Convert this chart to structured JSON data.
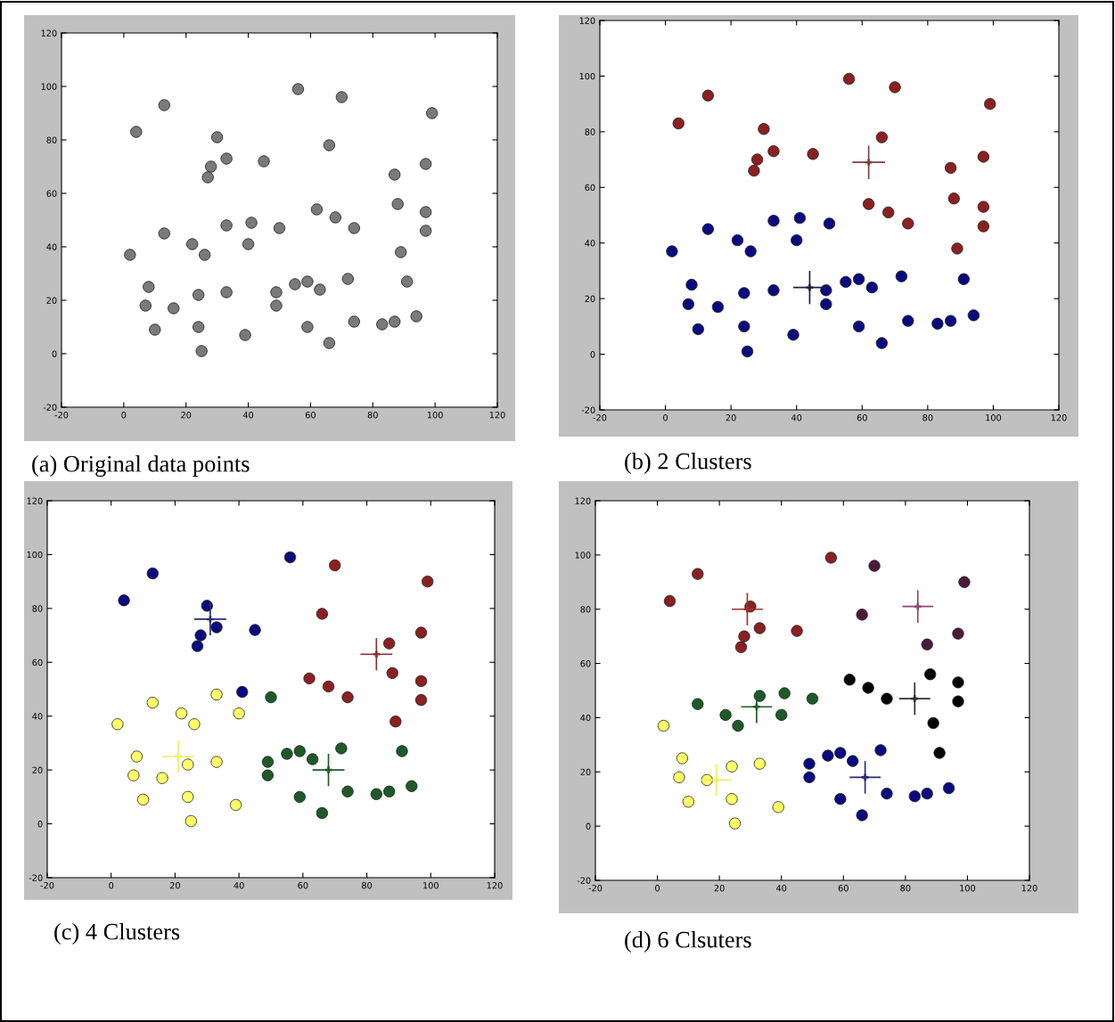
{
  "chart_data": [
    {
      "type": "scatter",
      "title": "(a) Original data points",
      "xlim": [
        -20,
        120
      ],
      "ylim": [
        -20,
        120
      ],
      "xticks": [
        -20,
        0,
        20,
        40,
        60,
        80,
        100,
        120
      ],
      "yticks": [
        -20,
        0,
        20,
        40,
        60,
        80,
        100,
        120
      ],
      "grid": false,
      "series": [
        {
          "color": "#7a7a7a",
          "marker": "circle",
          "x": [
            4,
            13,
            56,
            70,
            99,
            30,
            66,
            33,
            45,
            28,
            27,
            97,
            87,
            88,
            97,
            97,
            62,
            68,
            74,
            89,
            33,
            41,
            50,
            13,
            22,
            40,
            2,
            26,
            8,
            7,
            16,
            10,
            24,
            24,
            25,
            33,
            39,
            49,
            49,
            55,
            59,
            63,
            72,
            59,
            66,
            74,
            83,
            87,
            91,
            94
          ],
          "values": [
            83,
            93,
            99,
            96,
            90,
            81,
            78,
            73,
            72,
            70,
            66,
            71,
            67,
            56,
            53,
            46,
            54,
            51,
            47,
            38,
            48,
            49,
            47,
            45,
            41,
            41,
            37,
            37,
            25,
            18,
            17,
            9,
            22,
            10,
            1,
            23,
            7,
            23,
            18,
            26,
            27,
            24,
            28,
            10,
            4,
            12,
            11,
            12,
            27,
            14
          ]
        }
      ]
    },
    {
      "type": "scatter",
      "title": "(b) 2 Clusters",
      "xlim": [
        -20,
        120
      ],
      "ylim": [
        -20,
        120
      ],
      "xticks": [
        -20,
        0,
        20,
        40,
        60,
        80,
        100,
        120
      ],
      "yticks": [
        -20,
        0,
        20,
        40,
        60,
        80,
        100,
        120
      ],
      "grid": false,
      "series": [
        {
          "color": "#8b2020",
          "marker": "circle",
          "x": [
            4,
            13,
            56,
            70,
            99,
            30,
            66,
            33,
            45,
            28,
            27,
            97,
            87,
            88,
            97,
            97,
            62,
            68,
            74,
            89
          ],
          "values": [
            83,
            93,
            99,
            96,
            90,
            81,
            78,
            73,
            72,
            70,
            66,
            71,
            67,
            56,
            53,
            46,
            54,
            51,
            47,
            38
          ]
        },
        {
          "color": "#0a0a80",
          "marker": "circle",
          "x": [
            33,
            41,
            50,
            13,
            22,
            40,
            2,
            26,
            8,
            7,
            16,
            10,
            24,
            24,
            25,
            33,
            39,
            49,
            49,
            55,
            59,
            63,
            72,
            59,
            66,
            74,
            83,
            87,
            91,
            94
          ],
          "values": [
            48,
            49,
            47,
            45,
            41,
            41,
            37,
            37,
            25,
            18,
            17,
            9,
            22,
            10,
            1,
            23,
            7,
            23,
            18,
            26,
            27,
            24,
            28,
            10,
            4,
            12,
            11,
            12,
            27,
            14
          ]
        },
        {
          "marker": "cross",
          "colors": [
            "#7a4040",
            "#202040"
          ],
          "x": [
            62,
            44
          ],
          "values": [
            69,
            24
          ],
          "errors": [
            6,
            6
          ],
          "xerrors": [
            5,
            5
          ]
        }
      ]
    },
    {
      "type": "scatter",
      "title": "(c) 4 Clusters",
      "xlim": [
        -20,
        120
      ],
      "ylim": [
        -20,
        120
      ],
      "xticks": [
        -20,
        0,
        20,
        40,
        60,
        80,
        100,
        120
      ],
      "yticks": [
        -20,
        0,
        20,
        40,
        60,
        80,
        100,
        120
      ],
      "grid": false,
      "series": [
        {
          "color": "#0a0a80",
          "marker": "circle",
          "x": [
            4,
            13,
            56,
            30,
            33,
            45,
            28,
            27,
            41
          ],
          "values": [
            83,
            93,
            99,
            81,
            73,
            72,
            70,
            66,
            49
          ]
        },
        {
          "color": "#8b2020",
          "marker": "circle",
          "x": [
            70,
            99,
            66,
            97,
            87,
            88,
            97,
            97,
            62,
            68,
            74,
            89
          ],
          "values": [
            96,
            90,
            78,
            71,
            67,
            56,
            53,
            46,
            54,
            51,
            47,
            38
          ]
        },
        {
          "color": "#1e5a28",
          "marker": "circle",
          "x": [
            50,
            49,
            49,
            55,
            59,
            63,
            72,
            59,
            66,
            74,
            83,
            87,
            91,
            94
          ],
          "values": [
            47,
            23,
            18,
            26,
            27,
            24,
            28,
            10,
            4,
            12,
            11,
            12,
            27,
            14
          ]
        },
        {
          "color": "#ffff66",
          "marker": "circle",
          "x": [
            33,
            13,
            22,
            40,
            2,
            26,
            8,
            7,
            16,
            10,
            24,
            24,
            25,
            33,
            39
          ],
          "values": [
            48,
            45,
            41,
            41,
            37,
            37,
            25,
            18,
            17,
            9,
            22,
            10,
            1,
            23,
            7
          ]
        },
        {
          "marker": "cross",
          "colors": [
            "#2a2a70",
            "#8b3030",
            "#205a28",
            "#f0f060"
          ],
          "x": [
            31,
            83,
            68,
            21
          ],
          "values": [
            76,
            63,
            20,
            25
          ],
          "errors": [
            6,
            6,
            6,
            6
          ],
          "xerrors": [
            5,
            5,
            5,
            5
          ]
        }
      ]
    },
    {
      "type": "scatter",
      "title": "(d) 6 Clsuters",
      "xlim": [
        -20,
        120
      ],
      "ylim": [
        -20,
        120
      ],
      "xticks": [
        -20,
        0,
        20,
        40,
        60,
        80,
        100,
        120
      ],
      "yticks": [
        -20,
        0,
        20,
        40,
        60,
        80,
        100,
        120
      ],
      "grid": false,
      "series": [
        {
          "color": "#8b2020",
          "marker": "circle",
          "x": [
            4,
            13,
            56,
            30,
            33,
            45,
            28,
            27
          ],
          "values": [
            83,
            93,
            99,
            81,
            73,
            72,
            70,
            66
          ]
        },
        {
          "color": "#4a1c3c",
          "marker": "circle",
          "x": [
            70,
            99,
            66,
            97,
            87
          ],
          "values": [
            96,
            90,
            78,
            71,
            67
          ]
        },
        {
          "color": "#000000",
          "marker": "circle",
          "x": [
            88,
            97,
            97,
            62,
            68,
            74,
            89,
            91
          ],
          "values": [
            56,
            53,
            46,
            54,
            51,
            47,
            38,
            27
          ]
        },
        {
          "color": "#1e5a28",
          "marker": "circle",
          "x": [
            33,
            41,
            50,
            13,
            22,
            40,
            26
          ],
          "values": [
            48,
            49,
            47,
            45,
            41,
            41,
            37
          ]
        },
        {
          "color": "#ffff66",
          "marker": "circle",
          "x": [
            2,
            8,
            7,
            16,
            10,
            24,
            24,
            25,
            33,
            39
          ],
          "values": [
            37,
            25,
            18,
            17,
            9,
            22,
            10,
            1,
            23,
            7
          ]
        },
        {
          "color": "#0a0a80",
          "marker": "circle",
          "x": [
            49,
            49,
            55,
            59,
            63,
            72,
            59,
            66,
            74,
            83,
            87,
            94
          ],
          "values": [
            23,
            18,
            26,
            27,
            24,
            28,
            10,
            4,
            12,
            11,
            12,
            14
          ]
        },
        {
          "marker": "cross",
          "colors": [
            "#a03030",
            "#8a4a7a",
            "#303030",
            "#205a28",
            "#f0f060",
            "#2a2a80"
          ],
          "x": [
            29,
            84,
            83,
            32,
            19,
            67
          ],
          "values": [
            80,
            81,
            47,
            44,
            17,
            18
          ],
          "errors": [
            6,
            6,
            6,
            6,
            6,
            6
          ],
          "xerrors": [
            5,
            5,
            5,
            5,
            5,
            5
          ]
        }
      ]
    }
  ]
}
